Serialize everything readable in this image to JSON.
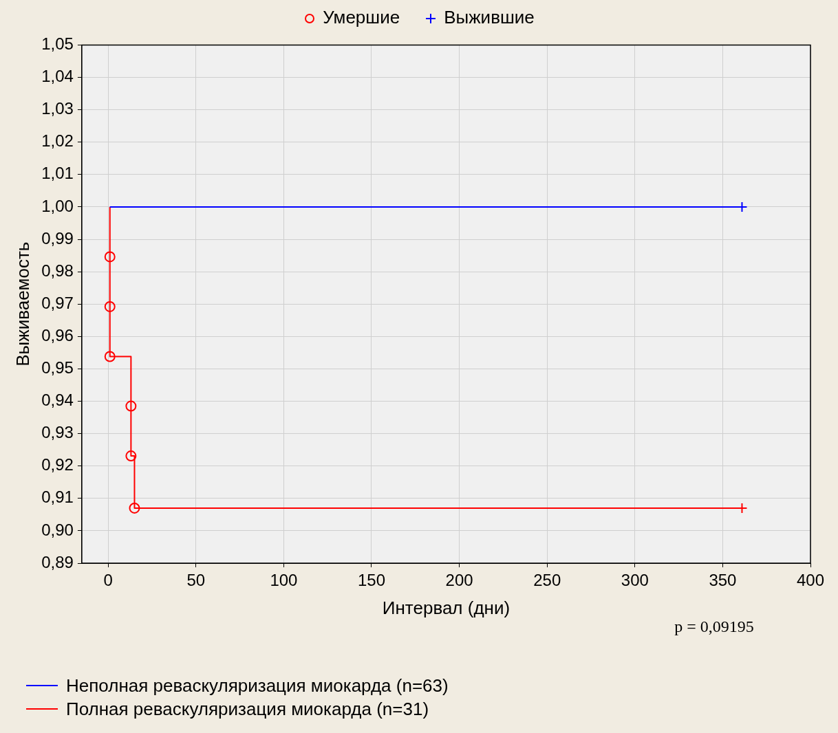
{
  "chart_data": {
    "type": "step",
    "xlabel": "Интервал (дни)",
    "ylabel": "Выживаемость",
    "xlim": [
      -15,
      400
    ],
    "xticks": [
      0,
      50,
      100,
      150,
      200,
      250,
      300,
      350,
      400
    ],
    "ylim": [
      0.89,
      1.05
    ],
    "yticks": [
      {
        "value": 0.89,
        "label": "0,89"
      },
      {
        "value": 0.9,
        "label": "0,90"
      },
      {
        "value": 0.91,
        "label": "0,91"
      },
      {
        "value": 0.92,
        "label": "0,92"
      },
      {
        "value": 0.93,
        "label": "0,93"
      },
      {
        "value": 0.94,
        "label": "0,94"
      },
      {
        "value": 0.95,
        "label": "0,95"
      },
      {
        "value": 0.96,
        "label": "0,96"
      },
      {
        "value": 0.97,
        "label": "0,97"
      },
      {
        "value": 0.98,
        "label": "0,98"
      },
      {
        "value": 0.99,
        "label": "0,99"
      },
      {
        "value": 1.0,
        "label": "1,00"
      },
      {
        "value": 1.01,
        "label": "1,01"
      },
      {
        "value": 1.02,
        "label": "1,02"
      },
      {
        "value": 1.03,
        "label": "1,03"
      },
      {
        "value": 1.04,
        "label": "1,04"
      },
      {
        "value": 1.05,
        "label": "1,05"
      }
    ],
    "grid": true,
    "legend": "bottom left",
    "line_style": "solid",
    "series": [
      {
        "name": "Неполная реваскуляризация миокарда (n=63)",
        "color": "#0000ff",
        "x": [
          1,
          361
        ],
        "values": [
          1.0,
          1.0
        ]
      },
      {
        "name": "Полная реваскуляризация миокарда (n=31)",
        "color": "#ff0000",
        "x": [
          1,
          1,
          1,
          1,
          13,
          13,
          15,
          361
        ],
        "values": [
          1.0,
          0.9846,
          0.9692,
          0.9538,
          0.9385,
          0.9231,
          0.907,
          0.907
        ]
      },
      {
        "name": "Умершие",
        "type": "scatter",
        "marker": "circle",
        "colors": [
          "#ff0000",
          "#ff0000",
          "#ff0000",
          "#ff0000",
          "#ff0000",
          "#ff0000"
        ],
        "x": [
          1,
          1,
          1,
          13,
          13,
          15
        ],
        "values": [
          0.9846,
          0.9692,
          0.9538,
          0.9385,
          0.9231,
          0.907
        ]
      },
      {
        "name": "Выжившие",
        "type": "scatter",
        "marker": "cross",
        "colors": [
          "#0000ff",
          "#ff0000"
        ],
        "x": [
          361,
          361
        ],
        "values": [
          1.0,
          0.907
        ]
      }
    ],
    "annotations": [
      "p = 0,09195"
    ]
  }
}
